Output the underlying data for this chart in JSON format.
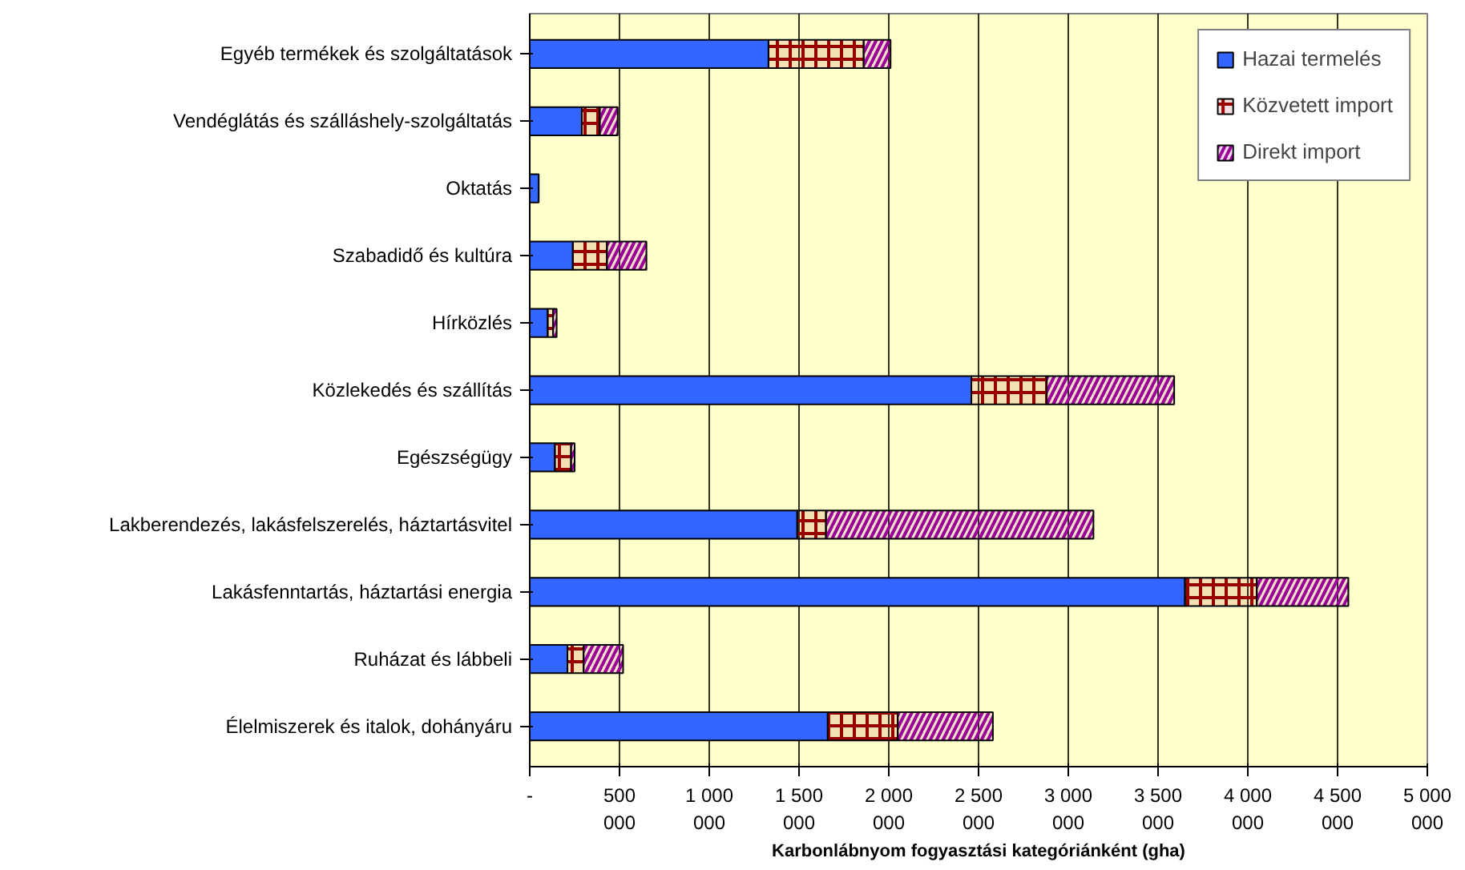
{
  "chart_data": {
    "type": "bar",
    "orientation": "horizontal",
    "stacked": true,
    "xlabel": "Karbonlábnyom fogyasztási kategóriánként (gha)",
    "categories": [
      "Egyéb termékek és szolgáltatások",
      "Vendéglátás és szálláshely-szolgáltatás",
      "Oktatás",
      "Szabadidő és kultúra",
      "Hírközlés",
      "Közlekedés és szállítás",
      "Egészségügy",
      "Lakberendezés, lakásfelszerelés, háztartásvitel",
      "Lakásfenntartás, háztartási energia",
      "Ruházat és lábbeli",
      "Élelmiszerek és italok, dohányáru"
    ],
    "series": [
      {
        "name": "Hazai termelés",
        "color": "#3366ff",
        "values": [
          1330000,
          290000,
          50000,
          240000,
          100000,
          2460000,
          140000,
          1490000,
          3650000,
          210000,
          1660000
        ]
      },
      {
        "name": "Közvetett import",
        "color": "#990000",
        "values": [
          530000,
          100000,
          null,
          190000,
          30000,
          420000,
          90000,
          160000,
          400000,
          90000,
          390000
        ]
      },
      {
        "name": "Direkt import",
        "color": "#990099",
        "values": [
          150000,
          100000,
          null,
          220000,
          20000,
          710000,
          20000,
          1490000,
          510000,
          220000,
          530000
        ]
      }
    ],
    "xlim": [
      0,
      5000000
    ],
    "xticks": [
      {
        "value": 0,
        "label": "-"
      },
      {
        "value": 500000,
        "label": "500 000"
      },
      {
        "value": 1000000,
        "label": "1 000 000"
      },
      {
        "value": 1500000,
        "label": "1 500 000"
      },
      {
        "value": 2000000,
        "label": "2 000 000"
      },
      {
        "value": 2500000,
        "label": "2 500 000"
      },
      {
        "value": 3000000,
        "label": "3 000 000"
      },
      {
        "value": 3500000,
        "label": "3 500 000"
      },
      {
        "value": 4000000,
        "label": "4 000 000"
      },
      {
        "value": 4500000,
        "label": "4 500 000"
      },
      {
        "value": 5000000,
        "label": "5 000 000"
      }
    ],
    "grid": "x",
    "legend": "top right"
  }
}
